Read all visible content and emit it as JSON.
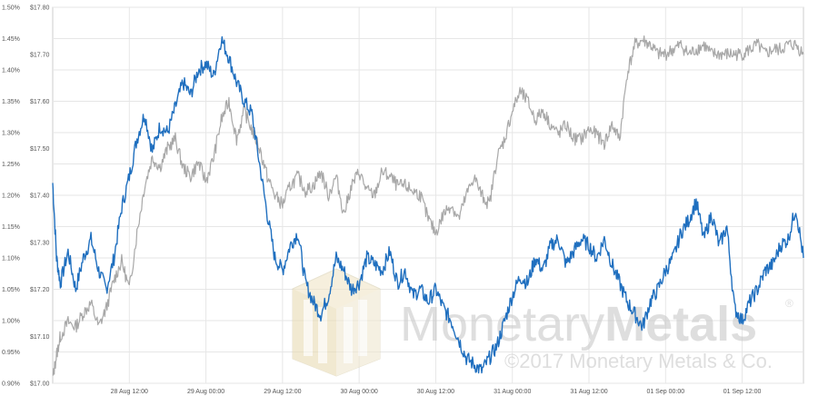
{
  "chart_data": {
    "type": "line",
    "title": "",
    "xlabel": "",
    "grid": true,
    "x_ticks": [
      "28 Aug 12:00",
      "29 Aug 00:00",
      "29 Aug 12:00",
      "30 Aug 00:00",
      "30 Aug 12:00",
      "31 Aug 00:00",
      "31 Aug 12:00",
      "01 Sep 00:00",
      "01 Sep 12:00"
    ],
    "x_tick_positions": [
      1,
      2,
      3,
      4,
      5,
      6,
      7,
      8,
      9
    ],
    "xlim": [
      0,
      9.8
    ],
    "y_left": {
      "ticks": [
        "0.90%",
        "0.95%",
        "1.00%",
        "1.05%",
        "1.10%",
        "1.15%",
        "1.20%",
        "1.25%",
        "1.30%",
        "1.35%",
        "1.40%",
        "1.45%",
        "1.50%"
      ],
      "ylim": [
        0.9,
        1.5
      ]
    },
    "y_right": {
      "ticks": [
        "$17.00",
        "$17.10",
        "$17.20",
        "$17.30",
        "$17.40",
        "$17.50",
        "$17.60",
        "$17.70",
        "$17.80"
      ],
      "ylim": [
        17.0,
        17.8
      ]
    },
    "series": [
      {
        "axis": "left",
        "color": "#1f6fbf",
        "x": [
          0,
          0.05,
          0.1,
          0.2,
          0.3,
          0.4,
          0.5,
          0.6,
          0.7,
          0.8,
          0.9,
          1.0,
          1.1,
          1.2,
          1.3,
          1.4,
          1.5,
          1.6,
          1.7,
          1.8,
          1.9,
          2.0,
          2.1,
          2.2,
          2.3,
          2.4,
          2.5,
          2.6,
          2.7,
          2.8,
          2.9,
          3.0,
          3.1,
          3.2,
          3.3,
          3.4,
          3.5,
          3.6,
          3.7,
          3.8,
          3.9,
          4.0,
          4.1,
          4.2,
          4.3,
          4.4,
          4.5,
          4.6,
          4.7,
          4.8,
          4.9,
          5.0,
          5.1,
          5.2,
          5.3,
          5.4,
          5.5,
          5.6,
          5.7,
          5.8,
          5.9,
          6.0,
          6.1,
          6.2,
          6.3,
          6.4,
          6.5,
          6.6,
          6.7,
          6.8,
          6.9,
          7.0,
          7.1,
          7.2,
          7.3,
          7.4,
          7.5,
          7.6,
          7.7,
          7.8,
          7.9,
          8.0,
          8.1,
          8.2,
          8.3,
          8.4,
          8.5,
          8.6,
          8.7,
          8.8,
          8.9,
          9.0,
          9.1,
          9.2,
          9.3,
          9.4,
          9.5,
          9.6,
          9.7,
          9.8
        ],
        "values": [
          1.22,
          1.1,
          1.06,
          1.11,
          1.05,
          1.1,
          1.13,
          1.08,
          1.05,
          1.1,
          1.18,
          1.23,
          1.29,
          1.33,
          1.27,
          1.31,
          1.3,
          1.34,
          1.38,
          1.36,
          1.4,
          1.41,
          1.39,
          1.45,
          1.42,
          1.38,
          1.35,
          1.33,
          1.25,
          1.17,
          1.1,
          1.08,
          1.12,
          1.14,
          1.06,
          1.03,
          1.01,
          1.04,
          1.1,
          1.08,
          1.05,
          1.06,
          1.1,
          1.09,
          1.08,
          1.11,
          1.06,
          1.08,
          1.04,
          1.05,
          1.03,
          1.05,
          1.02,
          1.0,
          0.97,
          0.94,
          0.93,
          0.92,
          0.94,
          0.96,
          1.0,
          1.04,
          1.07,
          1.06,
          1.1,
          1.08,
          1.12,
          1.13,
          1.09,
          1.11,
          1.13,
          1.12,
          1.1,
          1.13,
          1.09,
          1.06,
          1.03,
          1.01,
          0.99,
          1.03,
          1.05,
          1.08,
          1.1,
          1.14,
          1.16,
          1.19,
          1.13,
          1.17,
          1.12,
          1.15,
          1.02,
          1.0,
          1.03,
          1.05,
          1.08,
          1.09,
          1.12,
          1.13,
          1.18,
          1.1
        ]
      },
      {
        "axis": "right",
        "color": "#a8a8a8",
        "x": [
          0,
          0.05,
          0.1,
          0.2,
          0.3,
          0.4,
          0.5,
          0.6,
          0.7,
          0.8,
          0.9,
          1.0,
          1.1,
          1.2,
          1.3,
          1.4,
          1.5,
          1.6,
          1.7,
          1.8,
          1.9,
          2.0,
          2.1,
          2.2,
          2.3,
          2.4,
          2.5,
          2.6,
          2.7,
          2.8,
          2.9,
          3.0,
          3.1,
          3.2,
          3.3,
          3.4,
          3.5,
          3.6,
          3.7,
          3.8,
          3.9,
          4.0,
          4.1,
          4.2,
          4.3,
          4.4,
          4.5,
          4.6,
          4.7,
          4.8,
          4.9,
          5.0,
          5.1,
          5.2,
          5.3,
          5.4,
          5.5,
          5.6,
          5.7,
          5.8,
          5.9,
          6.0,
          6.1,
          6.2,
          6.3,
          6.4,
          6.5,
          6.6,
          6.7,
          6.8,
          6.9,
          7.0,
          7.1,
          7.2,
          7.3,
          7.4,
          7.5,
          7.6,
          7.7,
          7.8,
          7.9,
          8.0,
          8.1,
          8.2,
          8.3,
          8.4,
          8.5,
          8.6,
          8.7,
          8.8,
          8.9,
          9.0,
          9.1,
          9.2,
          9.3,
          9.4,
          9.5,
          9.6,
          9.7,
          9.8
        ],
        "values": [
          17.01,
          17.06,
          17.1,
          17.13,
          17.12,
          17.15,
          17.17,
          17.12,
          17.16,
          17.22,
          17.26,
          17.2,
          17.32,
          17.42,
          17.48,
          17.46,
          17.5,
          17.52,
          17.46,
          17.44,
          17.47,
          17.43,
          17.48,
          17.56,
          17.6,
          17.52,
          17.58,
          17.54,
          17.5,
          17.44,
          17.4,
          17.38,
          17.42,
          17.44,
          17.41,
          17.42,
          17.45,
          17.4,
          17.44,
          17.36,
          17.42,
          17.45,
          17.41,
          17.4,
          17.45,
          17.44,
          17.42,
          17.42,
          17.41,
          17.4,
          17.35,
          17.32,
          17.36,
          17.38,
          17.35,
          17.4,
          17.44,
          17.4,
          17.38,
          17.48,
          17.52,
          17.58,
          17.62,
          17.6,
          17.56,
          17.58,
          17.55,
          17.53,
          17.55,
          17.52,
          17.52,
          17.54,
          17.53,
          17.51,
          17.55,
          17.52,
          17.66,
          17.72,
          17.73,
          17.72,
          17.7,
          17.7,
          17.71,
          17.72,
          17.7,
          17.71,
          17.72,
          17.7,
          17.7,
          17.7,
          17.7,
          17.7,
          17.71,
          17.72,
          17.7,
          17.71,
          17.71,
          17.72,
          17.72,
          17.7
        ]
      }
    ]
  },
  "watermark": {
    "name": "MonetaryMetals",
    "name_part1": "Monetary",
    "name_part2": "Metals",
    "registered": "®",
    "copyright": "©2017 Monetary Metals & Co."
  }
}
